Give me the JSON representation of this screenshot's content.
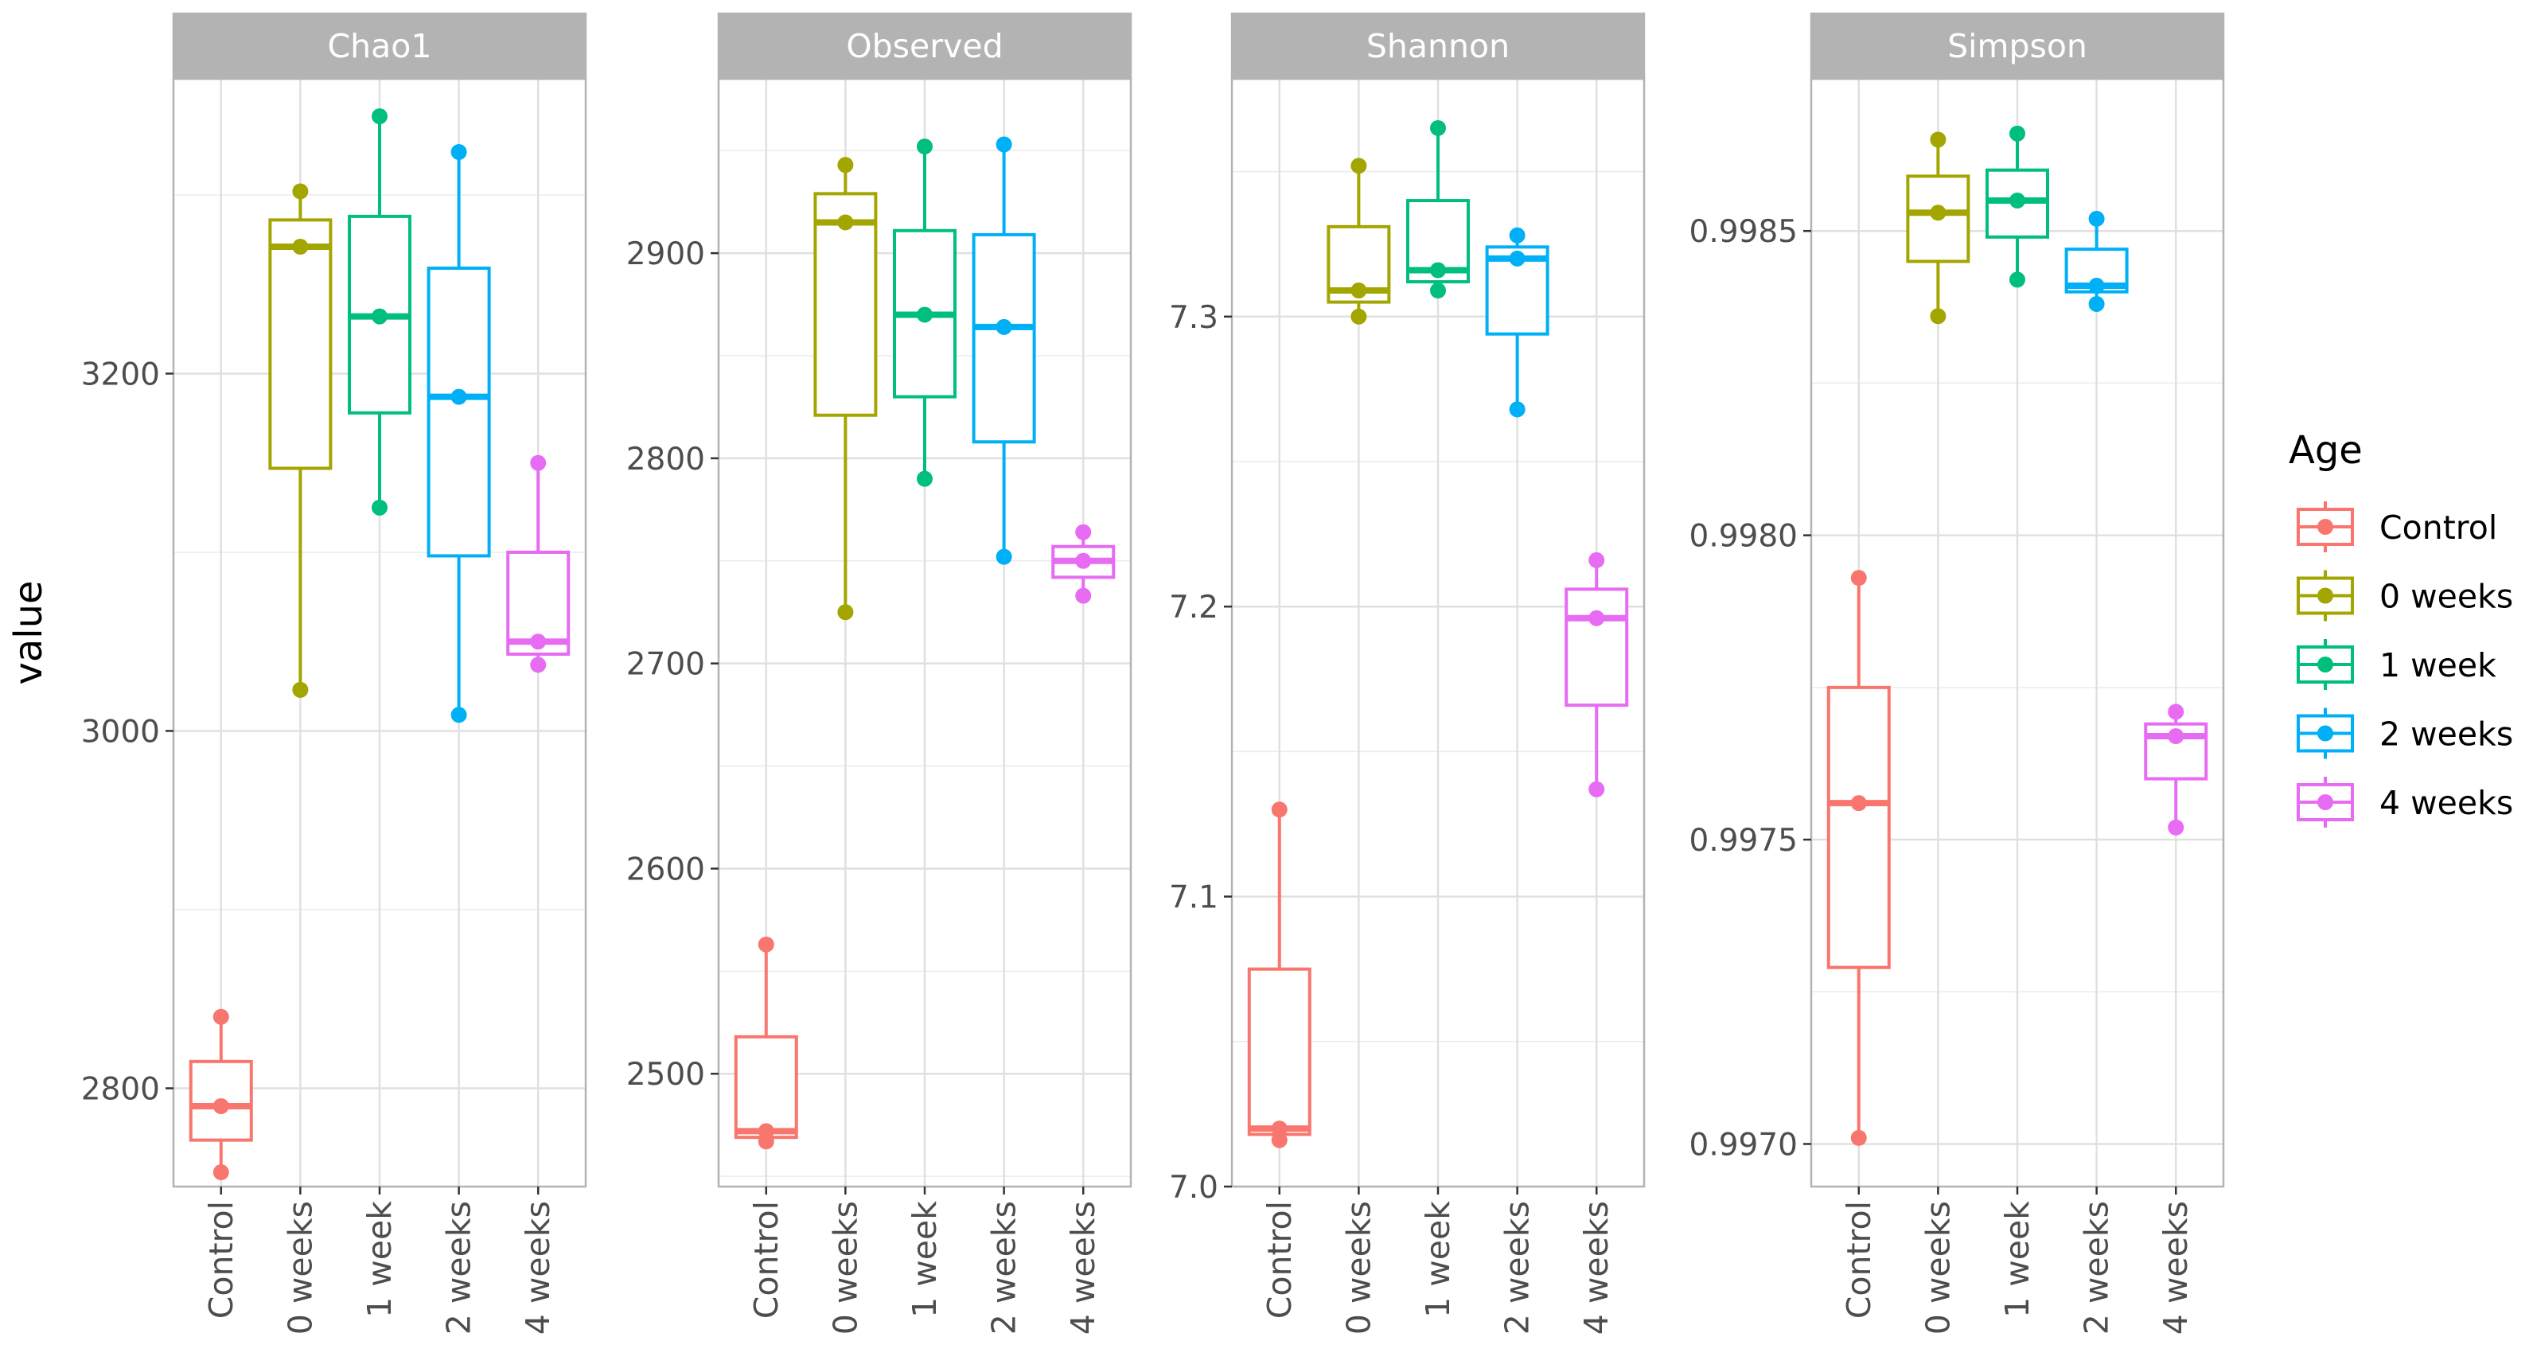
{
  "chart_data": {
    "type": "box",
    "ylabel": "value",
    "categories": [
      "Control",
      "0 weeks",
      "1 week",
      "2 weeks",
      "4 weeks"
    ],
    "colors": [
      "#F8766D",
      "#A3A500",
      "#00BF7D",
      "#00B0F6",
      "#E76BF3"
    ],
    "legend": {
      "title": "Age",
      "position": "right",
      "entries": [
        "Control",
        "0 weeks",
        "1 week",
        "2 weeks",
        "4 weeks"
      ]
    },
    "panels": [
      {
        "title": "Chao1",
        "ylim": [
          2745,
          3365
        ],
        "yticks": [
          2800,
          3000,
          3200
        ],
        "ytick_labels": [
          "2800",
          "3000",
          "3200"
        ],
        "groups": [
          {
            "category": "Control",
            "q1": 2771,
            "median": 2790,
            "q3": 2815,
            "whisker_low": 2753,
            "whisker_high": 2840,
            "points": [
              2753,
              2790,
              2840
            ]
          },
          {
            "category": "0 weeks",
            "q1": 3147,
            "median": 3271,
            "q3": 3286,
            "whisker_low": 3023,
            "whisker_high": 3302,
            "points": [
              3023,
              3271,
              3302
            ]
          },
          {
            "category": "1 week",
            "q1": 3178,
            "median": 3232,
            "q3": 3288,
            "whisker_low": 3125,
            "whisker_high": 3344,
            "points": [
              3125,
              3232,
              3344
            ]
          },
          {
            "category": "2 weeks",
            "q1": 3098,
            "median": 3187,
            "q3": 3259,
            "whisker_low": 3009,
            "whisker_high": 3324,
            "points": [
              3009,
              3187,
              3324
            ]
          },
          {
            "category": "4 weeks",
            "q1": 3043,
            "median": 3050,
            "q3": 3100,
            "whisker_low": 3037,
            "whisker_high": 3150,
            "points": [
              3037,
              3050,
              3150
            ]
          }
        ]
      },
      {
        "title": "Observed",
        "ylim": [
          2445,
          2985
        ],
        "yticks": [
          2500,
          2600,
          2700,
          2800,
          2900
        ],
        "ytick_labels": [
          "2500",
          "2600",
          "2700",
          "2800",
          "2900"
        ],
        "groups": [
          {
            "category": "Control",
            "q1": 2469,
            "median": 2472,
            "q3": 2518,
            "whisker_low": 2467,
            "whisker_high": 2563,
            "points": [
              2467,
              2472,
              2563
            ]
          },
          {
            "category": "0 weeks",
            "q1": 2821,
            "median": 2915,
            "q3": 2929,
            "whisker_low": 2725,
            "whisker_high": 2943,
            "points": [
              2725,
              2915,
              2943
            ]
          },
          {
            "category": "1 week",
            "q1": 2830,
            "median": 2870,
            "q3": 2911,
            "whisker_low": 2790,
            "whisker_high": 2952,
            "points": [
              2790,
              2870,
              2952
            ]
          },
          {
            "category": "2 weeks",
            "q1": 2808,
            "median": 2864,
            "q3": 2909,
            "whisker_low": 2752,
            "whisker_high": 2953,
            "points": [
              2752,
              2864,
              2953
            ]
          },
          {
            "category": "4 weeks",
            "q1": 2742,
            "median": 2750,
            "q3": 2757,
            "whisker_low": 2733,
            "whisker_high": 2764,
            "points": [
              2733,
              2750,
              2764
            ]
          }
        ]
      },
      {
        "title": "Shannon",
        "ylim": [
          7.0,
          7.382
        ],
        "yticks": [
          7.0,
          7.1,
          7.2,
          7.3
        ],
        "ytick_labels": [
          "7.0",
          "7.1",
          "7.2",
          "7.3"
        ],
        "groups": [
          {
            "category": "Control",
            "q1": 7.018,
            "median": 7.02,
            "q3": 7.075,
            "whisker_low": 7.016,
            "whisker_high": 7.13,
            "points": [
              7.016,
              7.02,
              7.13
            ]
          },
          {
            "category": "0 weeks",
            "q1": 7.305,
            "median": 7.309,
            "q3": 7.331,
            "whisker_low": 7.3,
            "whisker_high": 7.352,
            "points": [
              7.3,
              7.309,
              7.352
            ]
          },
          {
            "category": "1 week",
            "q1": 7.312,
            "median": 7.316,
            "q3": 7.34,
            "whisker_low": 7.309,
            "whisker_high": 7.365,
            "points": [
              7.309,
              7.316,
              7.365
            ]
          },
          {
            "category": "2 weeks",
            "q1": 7.294,
            "median": 7.32,
            "q3": 7.324,
            "whisker_low": 7.268,
            "whisker_high": 7.328,
            "points": [
              7.268,
              7.32,
              7.328
            ]
          },
          {
            "category": "4 weeks",
            "q1": 7.166,
            "median": 7.196,
            "q3": 7.206,
            "whisker_low": 7.137,
            "whisker_high": 7.216,
            "points": [
              7.137,
              7.196,
              7.216
            ]
          }
        ]
      },
      {
        "title": "Simpson",
        "ylim": [
          0.99693,
          0.99875
        ],
        "yticks": [
          0.997,
          0.9975,
          0.998,
          0.9985
        ],
        "ytick_labels": [
          "0.9970",
          "0.9975",
          "0.9980",
          "0.9985"
        ],
        "groups": [
          {
            "category": "Control",
            "q1": 0.99729,
            "median": 0.99756,
            "q3": 0.99775,
            "whisker_low": 0.99701,
            "whisker_high": 0.99793,
            "points": [
              0.99701,
              0.99756,
              0.99793
            ]
          },
          {
            "category": "0 weeks",
            "q1": 0.99845,
            "median": 0.99853,
            "q3": 0.99859,
            "whisker_low": 0.99836,
            "whisker_high": 0.99865,
            "points": [
              0.99836,
              0.99853,
              0.99865
            ]
          },
          {
            "category": "1 week",
            "q1": 0.99849,
            "median": 0.99855,
            "q3": 0.9986,
            "whisker_low": 0.99842,
            "whisker_high": 0.99866,
            "points": [
              0.99842,
              0.99855,
              0.99866
            ]
          },
          {
            "category": "2 weeks",
            "q1": 0.9984,
            "median": 0.99841,
            "q3": 0.99847,
            "whisker_low": 0.99838,
            "whisker_high": 0.99852,
            "points": [
              0.99838,
              0.99841,
              0.99852
            ]
          },
          {
            "category": "4 weeks",
            "q1": 0.9976,
            "median": 0.99767,
            "q3": 0.99769,
            "whisker_low": 0.99752,
            "whisker_high": 0.99771,
            "points": [
              0.99752,
              0.99767,
              0.99771
            ]
          }
        ]
      }
    ]
  }
}
